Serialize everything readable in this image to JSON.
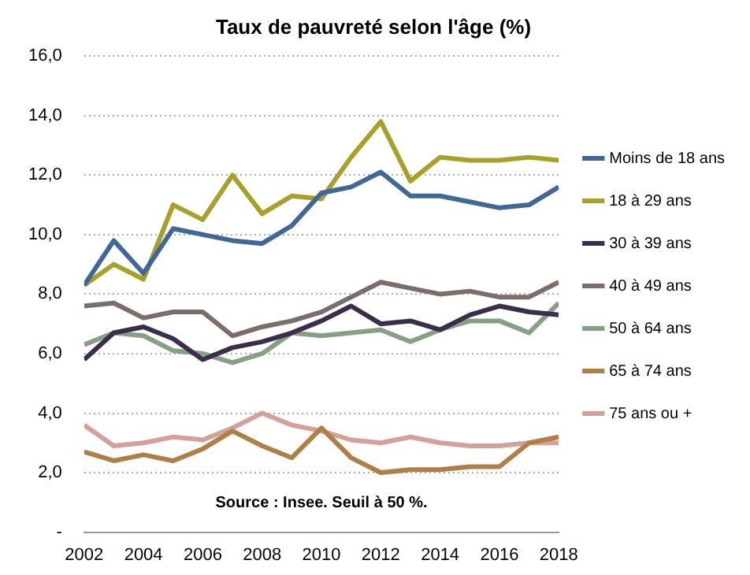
{
  "chart_data": {
    "type": "line",
    "title": "Taux de pauvreté selon l'âge (%)",
    "annotations": [
      "Source : Insee. Seuil à 50 %."
    ],
    "x": [
      2002,
      2003,
      2004,
      2005,
      2006,
      2007,
      2008,
      2009,
      2010,
      2011,
      2012,
      2013,
      2014,
      2015,
      2016,
      2017,
      2018
    ],
    "xlim": [
      2002,
      2018
    ],
    "xticks": [
      2002,
      2004,
      2006,
      2008,
      2010,
      2012,
      2014,
      2016,
      2018
    ],
    "ylim": [
      0,
      16
    ],
    "yticks": [
      {
        "value": 0,
        "label": "-"
      },
      {
        "value": 2,
        "label": "2,0"
      },
      {
        "value": 4,
        "label": "4,0"
      },
      {
        "value": 6,
        "label": "6,0"
      },
      {
        "value": 8,
        "label": "8,0"
      },
      {
        "value": 10,
        "label": "10,0"
      },
      {
        "value": 12,
        "label": "12,0"
      },
      {
        "value": 14,
        "label": "14,0"
      },
      {
        "value": 16,
        "label": "16,0"
      }
    ],
    "grid": "y",
    "legend": "right",
    "marker": "none",
    "line_style": "solid",
    "series": [
      {
        "name": "Moins de 18 ans",
        "color": "#3f6797",
        "values": [
          8.3,
          9.8,
          8.7,
          10.2,
          10.0,
          9.8,
          9.7,
          10.3,
          11.4,
          11.6,
          12.1,
          11.3,
          11.3,
          11.1,
          10.9,
          11.0,
          11.6
        ]
      },
      {
        "name": "18 à 29 ans",
        "color": "#a7a12a",
        "values": [
          8.3,
          9.0,
          8.5,
          11.0,
          10.5,
          12.0,
          10.7,
          11.3,
          11.2,
          12.6,
          13.8,
          11.8,
          12.6,
          12.5,
          12.5,
          12.6,
          12.5
        ]
      },
      {
        "name": "30 à 39 ans",
        "color": "#3b2e4a",
        "values": [
          5.8,
          6.7,
          6.9,
          6.5,
          5.8,
          6.2,
          6.4,
          6.7,
          7.1,
          7.6,
          7.0,
          7.1,
          6.8,
          7.3,
          7.6,
          7.4,
          7.3
        ]
      },
      {
        "name": "40 à 49 ans",
        "color": "#7a6e6a",
        "values": [
          7.6,
          7.7,
          7.2,
          7.4,
          7.4,
          6.6,
          6.9,
          7.1,
          7.4,
          7.9,
          8.4,
          8.2,
          8.0,
          8.1,
          7.9,
          7.9,
          8.4
        ]
      },
      {
        "name": "50 à 64 ans",
        "color": "#85a183",
        "values": [
          6.3,
          6.7,
          6.6,
          6.1,
          6.0,
          5.7,
          6.0,
          6.7,
          6.6,
          6.7,
          6.8,
          6.4,
          6.8,
          7.1,
          7.1,
          6.7,
          7.7
        ]
      },
      {
        "name": "65 à 74 ans",
        "color": "#b07f45",
        "values": [
          2.7,
          2.4,
          2.6,
          2.4,
          2.8,
          3.4,
          2.9,
          2.5,
          3.5,
          2.5,
          2.0,
          2.1,
          2.1,
          2.2,
          2.2,
          3.0,
          3.2
        ]
      },
      {
        "name": "75 ans ou +",
        "color": "#d4a09a",
        "values": [
          3.6,
          2.9,
          3.0,
          3.2,
          3.1,
          3.5,
          4.0,
          3.6,
          3.4,
          3.1,
          3.0,
          3.2,
          3.0,
          2.9,
          2.9,
          3.0,
          3.0
        ]
      }
    ]
  }
}
